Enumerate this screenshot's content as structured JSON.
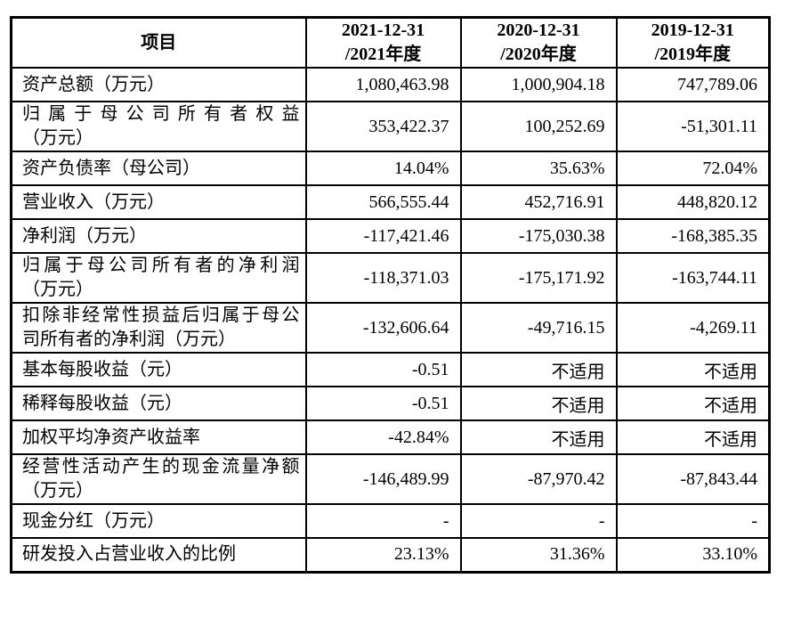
{
  "colors": {
    "background": "#ffffff",
    "text": "#000000",
    "border": "#000000"
  },
  "table": {
    "header": {
      "item_label": "项目",
      "periods": [
        {
          "line1": "2021-12-31",
          "line2": "/2021年度"
        },
        {
          "line1": "2020-12-31",
          "line2": "/2020年度"
        },
        {
          "line1": "2019-12-31",
          "line2": "/2019年度"
        }
      ]
    },
    "rows": [
      {
        "label_lines": [
          "资产总额（万元）"
        ],
        "values": [
          "1,080,463.98",
          "1,000,904.18",
          "747,789.06"
        ]
      },
      {
        "label_lines": [
          "归属于母公司所有者权益",
          "（万元）"
        ],
        "values": [
          "353,422.37",
          "100,252.69",
          "-51,301.11"
        ]
      },
      {
        "label_lines": [
          "资产负债率（母公司）"
        ],
        "values": [
          "14.04%",
          "35.63%",
          "72.04%"
        ]
      },
      {
        "label_lines": [
          "营业收入（万元）"
        ],
        "values": [
          "566,555.44",
          "452,716.91",
          "448,820.12"
        ]
      },
      {
        "label_lines": [
          "净利润（万元）"
        ],
        "values": [
          "-117,421.46",
          "-175,030.38",
          "-168,385.35"
        ]
      },
      {
        "label_lines": [
          "归属于母公司所有者的净利润",
          "（万元）"
        ],
        "values": [
          "-118,371.03",
          "-175,171.92",
          "-163,744.11"
        ]
      },
      {
        "label_lines": [
          "扣除非经常性损益后归属于母公",
          "司所有者的净利润（万元）"
        ],
        "values": [
          "-132,606.64",
          "-49,716.15",
          "-4,269.11"
        ]
      },
      {
        "label_lines": [
          "基本每股收益（元）"
        ],
        "values": [
          "-0.51",
          "不适用",
          "不适用"
        ]
      },
      {
        "label_lines": [
          "稀释每股收益（元）"
        ],
        "values": [
          "-0.51",
          "不适用",
          "不适用"
        ]
      },
      {
        "label_lines": [
          "加权平均净资产收益率"
        ],
        "values": [
          "-42.84%",
          "不适用",
          "不适用"
        ]
      },
      {
        "label_lines": [
          "经营性活动产生的现金流量净额",
          "（万元）"
        ],
        "values": [
          "-146,489.99",
          "-87,970.42",
          "-87,843.44"
        ]
      },
      {
        "label_lines": [
          "现金分红（万元）"
        ],
        "values": [
          "-",
          "-",
          "-"
        ]
      },
      {
        "label_lines": [
          "研发投入占营业收入的比例"
        ],
        "values": [
          "23.13%",
          "31.36%",
          "33.10%"
        ]
      }
    ]
  }
}
